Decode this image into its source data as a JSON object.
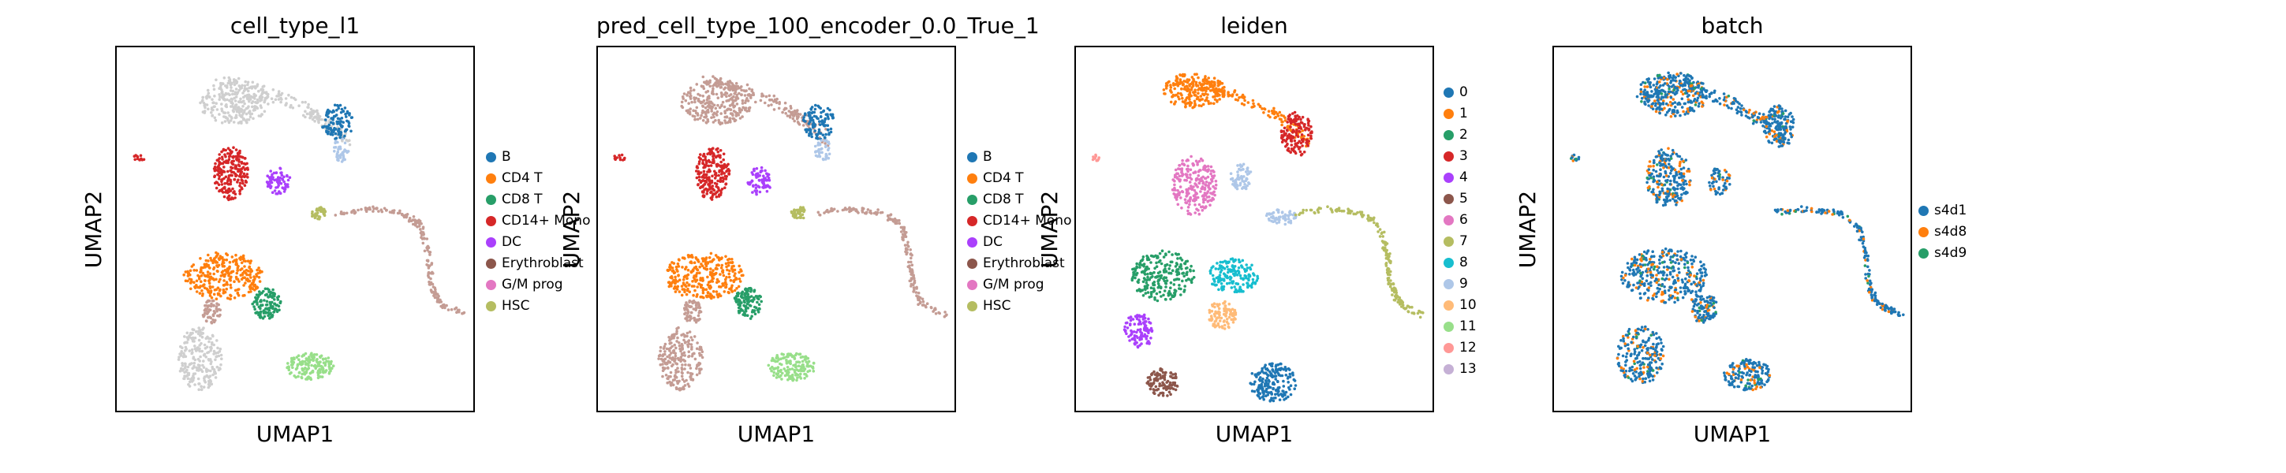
{
  "chart_data": [
    {
      "type": "scatter",
      "title": "cell_type_l1",
      "xlabel": "UMAP1",
      "ylabel": "UMAP2",
      "grid": false,
      "legend_placement": "right",
      "legend": [
        {
          "label": "B",
          "color": "#1f77b4"
        },
        {
          "label": "CD4 T",
          "color": "#ff7f0e"
        },
        {
          "label": "CD8 T",
          "color": "#279e68"
        },
        {
          "label": "CD14+ Mono",
          "color": "#d62728"
        },
        {
          "label": "DC",
          "color": "#aa40fc"
        },
        {
          "label": "Erythroblast",
          "color": "#8c564b"
        },
        {
          "label": "G/M prog",
          "color": "#e377c2"
        },
        {
          "label": "HSC",
          "color": "#b5bd61"
        }
      ]
    },
    {
      "type": "scatter",
      "title": "pred_cell_type_100_encoder_0.0_True_1",
      "xlabel": "UMAP1",
      "ylabel": "UMAP2",
      "grid": false,
      "legend_placement": "right",
      "legend": [
        {
          "label": "B",
          "color": "#1f77b4"
        },
        {
          "label": "CD4 T",
          "color": "#ff7f0e"
        },
        {
          "label": "CD8 T",
          "color": "#279e68"
        },
        {
          "label": "CD14+ Mono",
          "color": "#d62728"
        },
        {
          "label": "DC",
          "color": "#aa40fc"
        },
        {
          "label": "Erythroblast",
          "color": "#8c564b"
        },
        {
          "label": "G/M prog",
          "color": "#e377c2"
        },
        {
          "label": "HSC",
          "color": "#b5bd61"
        }
      ]
    },
    {
      "type": "scatter",
      "title": "leiden",
      "xlabel": "UMAP1",
      "ylabel": "UMAP2",
      "grid": false,
      "legend_placement": "right",
      "legend": [
        {
          "label": "0",
          "color": "#1f77b4"
        },
        {
          "label": "1",
          "color": "#ff7f0e"
        },
        {
          "label": "2",
          "color": "#279e68"
        },
        {
          "label": "3",
          "color": "#d62728"
        },
        {
          "label": "4",
          "color": "#aa40fc"
        },
        {
          "label": "5",
          "color": "#8c564b"
        },
        {
          "label": "6",
          "color": "#e377c2"
        },
        {
          "label": "7",
          "color": "#b5bd61"
        },
        {
          "label": "8",
          "color": "#17becf"
        },
        {
          "label": "9",
          "color": "#aec7e8"
        },
        {
          "label": "10",
          "color": "#ffbb78"
        },
        {
          "label": "11",
          "color": "#98df8a"
        },
        {
          "label": "12",
          "color": "#ff9896"
        },
        {
          "label": "13",
          "color": "#c5b0d5"
        }
      ]
    },
    {
      "type": "scatter",
      "title": "batch",
      "xlabel": "UMAP1",
      "ylabel": "UMAP2",
      "grid": false,
      "legend_placement": "right",
      "legend": [
        {
          "label": "s4d1",
          "color": "#1f77b4"
        },
        {
          "label": "s4d8",
          "color": "#ff7f0e"
        },
        {
          "label": "s4d9",
          "color": "#279e68"
        }
      ]
    }
  ]
}
